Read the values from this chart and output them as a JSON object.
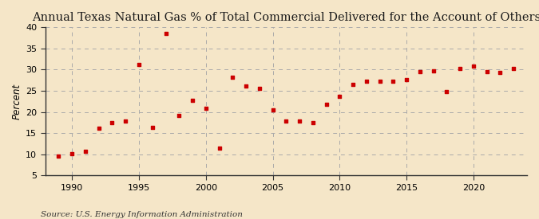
{
  "title": "Annual Texas Natural Gas % of Total Commercial Delivered for the Account of Others",
  "ylabel": "Percent",
  "source": "Source: U.S. Energy Information Administration",
  "background_color": "#f5e6c8",
  "plot_bg_color": "#f5e6c8",
  "marker_color": "#cc0000",
  "years": [
    1989,
    1990,
    1991,
    1992,
    1993,
    1994,
    1995,
    1996,
    1997,
    1998,
    1999,
    2000,
    2001,
    2002,
    2003,
    2004,
    2005,
    2006,
    2007,
    2008,
    2009,
    2010,
    2011,
    2012,
    2013,
    2014,
    2015,
    2016,
    2017,
    2018,
    2019,
    2020,
    2021,
    2022,
    2023
  ],
  "values": [
    9.5,
    10.2,
    10.8,
    16.1,
    17.5,
    17.8,
    31.2,
    16.4,
    38.5,
    19.1,
    22.8,
    20.9,
    11.4,
    28.2,
    26.2,
    25.5,
    20.4,
    17.8,
    17.9,
    17.5,
    21.8,
    23.6,
    26.6,
    27.2,
    27.2,
    27.3,
    27.7,
    29.5,
    29.8,
    24.8,
    30.3,
    30.8,
    29.6,
    29.3,
    30.3
  ],
  "xlim": [
    1988,
    2024
  ],
  "ylim": [
    5,
    40
  ],
  "yticks": [
    5,
    10,
    15,
    20,
    25,
    30,
    35,
    40
  ],
  "xticks": [
    1990,
    1995,
    2000,
    2005,
    2010,
    2015,
    2020
  ],
  "grid_color": "#aaaaaa",
  "spine_color": "#333333",
  "title_fontsize": 10.5,
  "label_fontsize": 8.5,
  "tick_fontsize": 8,
  "source_fontsize": 7.5
}
